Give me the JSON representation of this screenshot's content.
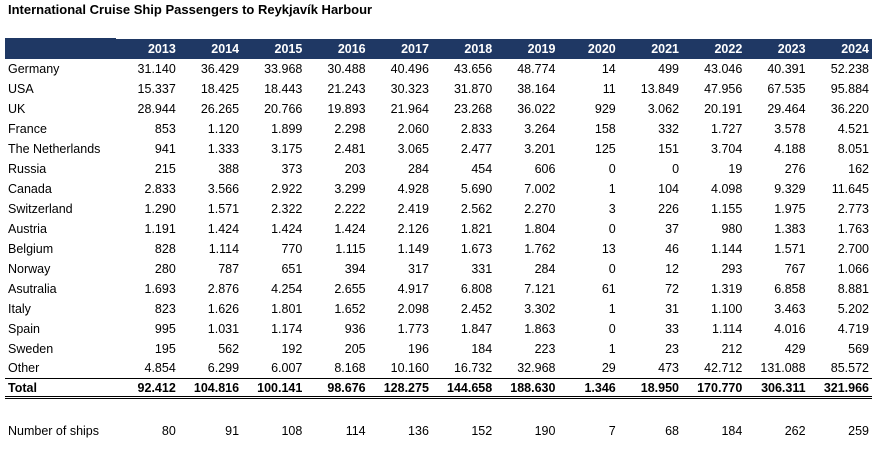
{
  "title": "International Cruise Ship Passengers to Reykjavík Harbour",
  "years": [
    "2013",
    "2014",
    "2015",
    "2016",
    "2017",
    "2018",
    "2019",
    "2020",
    "2021",
    "2022",
    "2023",
    "2024"
  ],
  "rows": [
    {
      "country": "Germany",
      "values": [
        "31.140",
        "36.429",
        "33.968",
        "30.488",
        "40.496",
        "43.656",
        "48.774",
        "14",
        "499",
        "43.046",
        "40.391",
        "52.238"
      ]
    },
    {
      "country": "USA",
      "values": [
        "15.337",
        "18.425",
        "18.443",
        "21.243",
        "30.323",
        "31.870",
        "38.164",
        "11",
        "13.849",
        "47.956",
        "67.535",
        "95.884"
      ]
    },
    {
      "country": "UK",
      "values": [
        "28.944",
        "26.265",
        "20.766",
        "19.893",
        "21.964",
        "23.268",
        "36.022",
        "929",
        "3.062",
        "20.191",
        "29.464",
        "36.220"
      ]
    },
    {
      "country": "France",
      "values": [
        "853",
        "1.120",
        "1.899",
        "2.298",
        "2.060",
        "2.833",
        "3.264",
        "158",
        "332",
        "1.727",
        "3.578",
        "4.521"
      ]
    },
    {
      "country": "The Netherlands",
      "values": [
        "941",
        "1.333",
        "3.175",
        "2.481",
        "3.065",
        "2.477",
        "3.201",
        "125",
        "151",
        "3.704",
        "4.188",
        "8.051"
      ]
    },
    {
      "country": "Russia",
      "values": [
        "215",
        "388",
        "373",
        "203",
        "284",
        "454",
        "606",
        "0",
        "0",
        "19",
        "276",
        "162"
      ]
    },
    {
      "country": "Canada",
      "values": [
        "2.833",
        "3.566",
        "2.922",
        "3.299",
        "4.928",
        "5.690",
        "7.002",
        "1",
        "104",
        "4.098",
        "9.329",
        "11.645"
      ]
    },
    {
      "country": "Switzerland",
      "values": [
        "1.290",
        "1.571",
        "2.322",
        "2.222",
        "2.419",
        "2.562",
        "2.270",
        "3",
        "226",
        "1.155",
        "1.975",
        "2.773"
      ]
    },
    {
      "country": "Austria",
      "values": [
        "1.191",
        "1.424",
        "1.424",
        "1.424",
        "2.126",
        "1.821",
        "1.804",
        "0",
        "37",
        "980",
        "1.383",
        "1.763"
      ]
    },
    {
      "country": "Belgium",
      "values": [
        "828",
        "1.114",
        "770",
        "1.115",
        "1.149",
        "1.673",
        "1.762",
        "13",
        "46",
        "1.144",
        "1.571",
        "2.700"
      ]
    },
    {
      "country": "Norway",
      "values": [
        "280",
        "787",
        "651",
        "394",
        "317",
        "331",
        "284",
        "0",
        "12",
        "293",
        "767",
        "1.066"
      ]
    },
    {
      "country": "Asutralia",
      "values": [
        "1.693",
        "2.876",
        "4.254",
        "2.655",
        "4.917",
        "6.808",
        "7.121",
        "61",
        "72",
        "1.319",
        "6.858",
        "8.881"
      ]
    },
    {
      "country": "Italy",
      "values": [
        "823",
        "1.626",
        "1.801",
        "1.652",
        "2.098",
        "2.452",
        "3.302",
        "1",
        "31",
        "1.100",
        "3.463",
        "5.202"
      ]
    },
    {
      "country": "Spain",
      "values": [
        "995",
        "1.031",
        "1.174",
        "936",
        "1.773",
        "1.847",
        "1.863",
        "0",
        "33",
        "1.114",
        "4.016",
        "4.719"
      ]
    },
    {
      "country": "Sweden",
      "values": [
        "195",
        "562",
        "192",
        "205",
        "196",
        "184",
        "223",
        "1",
        "23",
        "212",
        "429",
        "569"
      ]
    },
    {
      "country": "Other",
      "values": [
        "4.854",
        "6.299",
        "6.007",
        "8.168",
        "10.160",
        "16.732",
        "32.968",
        "29",
        "473",
        "42.712",
        "131.088",
        "85.572"
      ]
    }
  ],
  "total": {
    "label": "Total",
    "values": [
      "92.412",
      "104.816",
      "100.141",
      "98.676",
      "128.275",
      "144.658",
      "188.630",
      "1.346",
      "18.950",
      "170.770",
      "306.311",
      "321.966"
    ]
  },
  "ships": {
    "label": "Number of ships",
    "values": [
      "80",
      "91",
      "108",
      "114",
      "136",
      "152",
      "190",
      "7",
      "68",
      "184",
      "262",
      "259"
    ]
  },
  "colors": {
    "header_bg": "#1f3864",
    "header_text": "#ffffff"
  }
}
